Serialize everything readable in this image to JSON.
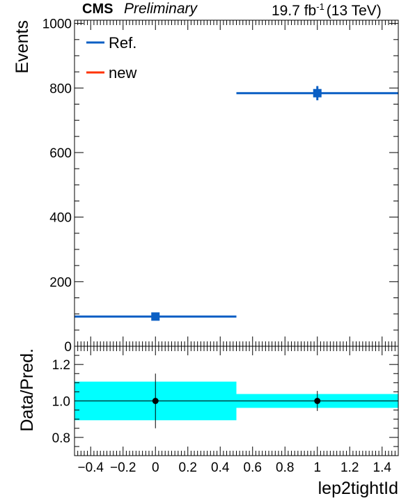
{
  "header": {
    "experiment": "CMS",
    "status": "Preliminary",
    "lumi": "19.7 fb",
    "lumi_exp": "-1",
    "energy": "(13 TeV)"
  },
  "chart_data": [
    {
      "type": "histogram",
      "panel": "main",
      "ylabel": "Events",
      "xlim": [
        -0.5,
        1.5
      ],
      "ylim": [
        0,
        1010
      ],
      "y_ticks": [
        0,
        200,
        400,
        600,
        800,
        1000
      ],
      "bins": [
        [
          -0.5,
          0.5
        ],
        [
          0.5,
          1.5
        ]
      ],
      "series": [
        {
          "name": "Ref.",
          "color": "#0a5fc4",
          "x": [
            0,
            1
          ],
          "values": [
            92,
            784
          ],
          "errors": [
            4,
            22
          ]
        },
        {
          "name": "new",
          "color": "#ff3300",
          "x": [],
          "values": []
        }
      ],
      "legend": "top-left"
    },
    {
      "type": "ratio",
      "panel": "ratio",
      "ylabel": "Data/Pred.",
      "xlabel": "lep2tightId",
      "xlim": [
        -0.5,
        1.5
      ],
      "ylim": [
        0.7,
        1.3
      ],
      "y_ticks": [
        0.8,
        1.0,
        1.2
      ],
      "y_tick_labels": [
        "0.8",
        "1.0",
        "1.2"
      ],
      "x_ticks": [
        -0.4,
        -0.2,
        0,
        0.2,
        0.4,
        0.6,
        0.8,
        1,
        1.2,
        1.4
      ],
      "x_tick_labels": [
        "−0.4",
        "−0.2",
        "0",
        "0.2",
        "0.4",
        "0.6",
        "0.8",
        "1",
        "1.2",
        "1.4"
      ],
      "band_color": "#00ffff",
      "band": [
        {
          "bin": [
            -0.5,
            0.5
          ],
          "low": 0.894,
          "high": 1.106
        },
        {
          "bin": [
            0.5,
            1.5
          ],
          "low": 0.962,
          "high": 1.038
        }
      ],
      "points": [
        {
          "x": 0,
          "y": 1.0,
          "err": 0.15
        },
        {
          "x": 1,
          "y": 1.0,
          "err": 0.055
        }
      ]
    }
  ]
}
